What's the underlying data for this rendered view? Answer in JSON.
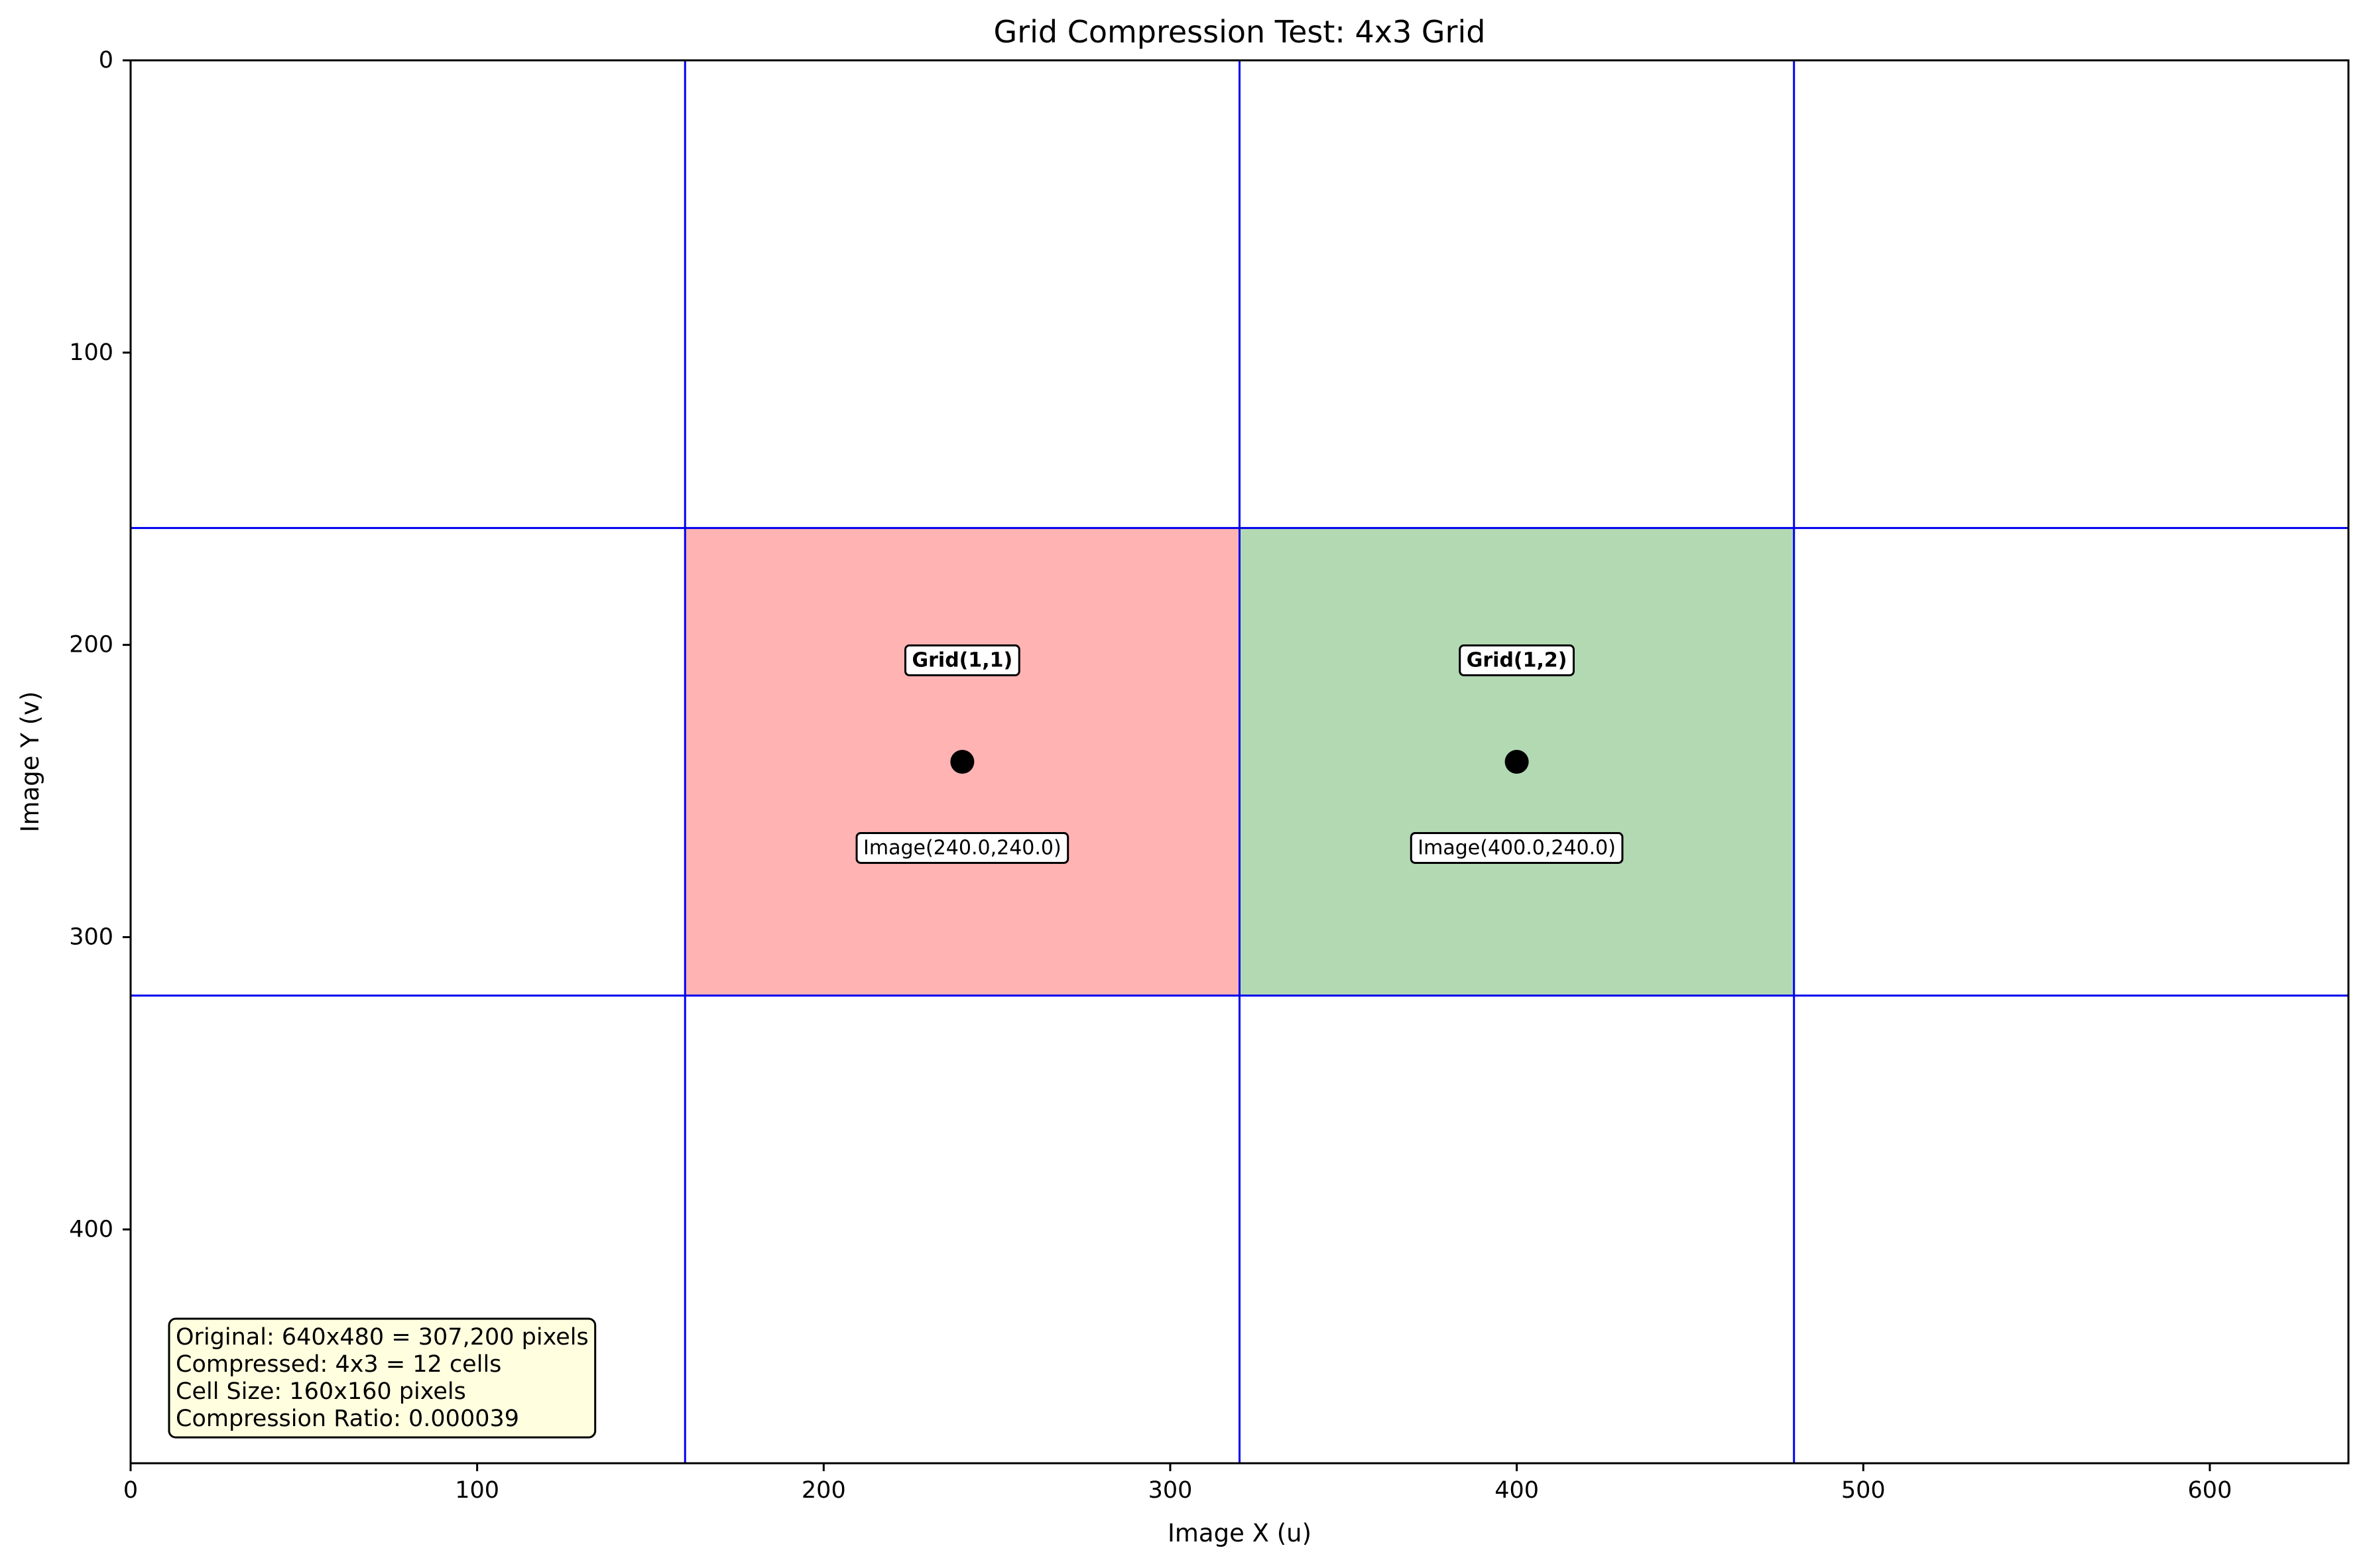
{
  "chart_data": {
    "type": "scatter",
    "title": "Grid Compression Test: 4x3 Grid",
    "xlabel": "Image X (u)",
    "ylabel": "Image Y (v)",
    "xlim": [
      0,
      640
    ],
    "ylim": [
      480,
      0
    ],
    "y_inverted": true,
    "x_ticks": [
      0,
      100,
      200,
      300,
      400,
      500,
      600
    ],
    "y_ticks": [
      0,
      100,
      200,
      300,
      400
    ],
    "x_tick_labels": [
      "0",
      "100",
      "200",
      "300",
      "400",
      "500",
      "600"
    ],
    "y_tick_labels": [
      "0",
      "100",
      "200",
      "300",
      "400"
    ],
    "grid": {
      "cols": 4,
      "rows": 3,
      "cell_size": 160,
      "vertical_lines": [
        160,
        320,
        480
      ],
      "horizontal_lines": [
        160,
        320
      ],
      "line_color": "#0000ee"
    },
    "highlighted_cells": [
      {
        "label": "Grid(1,1)",
        "row": 1,
        "col": 1,
        "x_range": [
          160,
          320
        ],
        "y_range": [
          160,
          320
        ],
        "fill_color": "#ffb3b3",
        "point": {
          "x": 240,
          "y": 240
        },
        "point_label": "Image(240.0,240.0)"
      },
      {
        "label": "Grid(1,2)",
        "row": 1,
        "col": 2,
        "x_range": [
          320,
          480
        ],
        "y_range": [
          160,
          320
        ],
        "fill_color": "#b3d9b3",
        "point": {
          "x": 400,
          "y": 240
        },
        "point_label": "Image(400.0,240.0)"
      }
    ],
    "info_box": {
      "lines": [
        "Original: 640x480 = 307,200 pixels",
        "Compressed: 4x3 = 12 cells",
        "Cell Size: 160x160 pixels",
        "Compression Ratio: 0.000039"
      ],
      "background": "#ffffe0",
      "placement": "bottom-left"
    }
  }
}
